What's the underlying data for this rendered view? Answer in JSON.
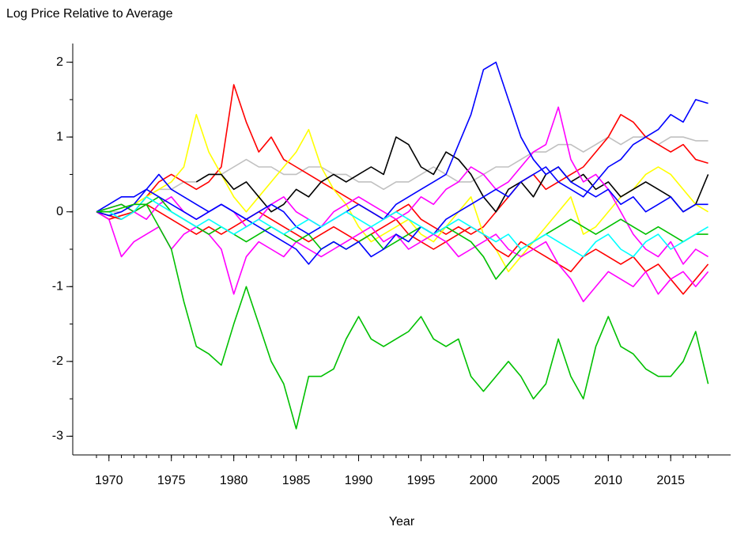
{
  "chart_data": {
    "type": "line",
    "title": "Log Price Relative to Average",
    "xlabel": "Year",
    "xlim": [
      1967.1,
      2019.8
    ],
    "ylim": [
      -3.25,
      2.25
    ],
    "xticks": [
      1970,
      1975,
      1980,
      1985,
      1990,
      1995,
      2000,
      2005,
      2010,
      2015
    ],
    "yticks": [
      -3,
      -2,
      -1,
      0,
      1,
      2
    ],
    "xminorticks": [
      1969,
      1970,
      1971,
      1972,
      1973,
      1974,
      1975,
      1976,
      1977,
      1978,
      1979,
      1980,
      1981,
      1982,
      1983,
      1984,
      1985,
      1986,
      1987,
      1988,
      1989,
      1990,
      1991,
      1992,
      1993,
      1994,
      1995,
      1996,
      1997,
      1998,
      1999,
      2000,
      2001,
      2002,
      2003,
      2004,
      2005,
      2006,
      2007,
      2008,
      2009,
      2010,
      2011,
      2012,
      2013,
      2014,
      2015,
      2016,
      2017,
      2018
    ],
    "yminorticks": [
      -3,
      -2.5,
      -2,
      -1.5,
      -1,
      -0.5,
      0,
      0.5,
      1,
      1.5,
      2
    ],
    "x": [
      1969,
      1970,
      1971,
      1972,
      1973,
      1974,
      1975,
      1976,
      1977,
      1978,
      1979,
      1980,
      1981,
      1982,
      1983,
      1984,
      1985,
      1986,
      1987,
      1988,
      1989,
      1990,
      1991,
      1992,
      1993,
      1994,
      1995,
      1996,
      1997,
      1998,
      1999,
      2000,
      2001,
      2002,
      2003,
      2004,
      2005,
      2006,
      2007,
      2008,
      2009,
      2010,
      2011,
      2012,
      2013,
      2014,
      2015,
      2016,
      2017,
      2018
    ],
    "series": [
      {
        "color": "#c0c0c0",
        "values": [
          0,
          0.0,
          0.0,
          0.1,
          0.2,
          0.3,
          0.3,
          0.4,
          0.4,
          0.5,
          0.5,
          0.6,
          0.7,
          0.6,
          0.6,
          0.5,
          0.5,
          0.6,
          0.6,
          0.5,
          0.5,
          0.4,
          0.4,
          0.3,
          0.4,
          0.4,
          0.5,
          0.6,
          0.5,
          0.4,
          0.4,
          0.5,
          0.6,
          0.6,
          0.7,
          0.8,
          0.8,
          0.9,
          0.9,
          0.8,
          0.9,
          1.0,
          0.9,
          1.0,
          1.0,
          0.9,
          1.0,
          1.0,
          0.95,
          0.95
        ]
      },
      {
        "color": "#ff0000",
        "values": [
          0,
          -0.05,
          -0.1,
          0.0,
          0.2,
          0.4,
          0.5,
          0.4,
          0.3,
          0.4,
          0.6,
          1.7,
          1.2,
          0.8,
          1.0,
          0.7,
          0.6,
          0.5,
          0.4,
          0.3,
          0.2,
          0.1,
          0.0,
          -0.1,
          0.0,
          0.1,
          -0.1,
          -0.2,
          -0.3,
          -0.2,
          -0.3,
          -0.2,
          0.0,
          0.2,
          0.4,
          0.5,
          0.3,
          0.4,
          0.5,
          0.6,
          0.8,
          1.0,
          1.3,
          1.2,
          1.0,
          0.9,
          0.8,
          0.9,
          0.7,
          0.65
        ]
      },
      {
        "color": "#ffff00",
        "values": [
          0,
          0.0,
          0.05,
          0.1,
          0.2,
          0.3,
          0.4,
          0.6,
          1.3,
          0.8,
          0.5,
          0.2,
          0.0,
          0.2,
          0.4,
          0.6,
          0.8,
          1.1,
          0.6,
          0.3,
          0.1,
          -0.2,
          -0.4,
          -0.3,
          -0.2,
          -0.1,
          -0.3,
          -0.4,
          -0.2,
          0.0,
          0.2,
          -0.3,
          -0.5,
          -0.8,
          -0.6,
          -0.4,
          -0.2,
          0.0,
          0.2,
          -0.3,
          -0.2,
          0.0,
          0.2,
          0.3,
          0.5,
          0.6,
          0.5,
          0.3,
          0.1,
          0.0
        ]
      },
      {
        "color": "#ff0000",
        "values": [
          0,
          -0.1,
          -0.05,
          0.0,
          0.1,
          0.0,
          -0.1,
          -0.2,
          -0.3,
          -0.2,
          -0.3,
          -0.2,
          -0.1,
          0.0,
          -0.1,
          -0.2,
          -0.3,
          -0.4,
          -0.3,
          -0.2,
          -0.3,
          -0.4,
          -0.3,
          -0.2,
          -0.1,
          -0.3,
          -0.4,
          -0.5,
          -0.4,
          -0.3,
          -0.2,
          -0.3,
          -0.5,
          -0.6,
          -0.4,
          -0.5,
          -0.6,
          -0.7,
          -0.8,
          -0.6,
          -0.5,
          -0.6,
          -0.7,
          -0.6,
          -0.8,
          -0.7,
          -0.9,
          -1.1,
          -0.9,
          -0.7
        ]
      },
      {
        "color": "#000000",
        "values": [
          null,
          null,
          null,
          null,
          null,
          null,
          null,
          null,
          0.4,
          0.5,
          0.5,
          0.3,
          0.4,
          0.2,
          0.0,
          0.1,
          0.3,
          0.2,
          0.4,
          0.5,
          0.4,
          0.5,
          0.6,
          0.5,
          1.0,
          0.9,
          0.6,
          0.5,
          0.8,
          0.7,
          0.5,
          0.2,
          0.0,
          0.3,
          0.4,
          0.2,
          0.5,
          0.6,
          0.4,
          0.5,
          0.3,
          0.4,
          0.2,
          0.3,
          0.4,
          0.3,
          0.2,
          0.0,
          0.1,
          0.5
        ]
      },
      {
        "color": "#ff00ff",
        "values": [
          0,
          -0.1,
          -0.6,
          -0.4,
          -0.3,
          -0.2,
          -0.5,
          -0.3,
          -0.2,
          -0.3,
          -0.5,
          -1.1,
          -0.6,
          -0.4,
          -0.5,
          -0.6,
          -0.4,
          -0.5,
          -0.6,
          -0.5,
          -0.4,
          -0.3,
          -0.2,
          -0.4,
          -0.3,
          -0.5,
          -0.4,
          -0.3,
          -0.4,
          -0.6,
          -0.5,
          -0.4,
          -0.3,
          -0.5,
          -0.6,
          -0.5,
          -0.4,
          -0.7,
          -0.9,
          -1.2,
          -1.0,
          -0.8,
          -0.9,
          -1.0,
          -0.8,
          -1.1,
          -0.9,
          -0.8,
          -1.0,
          -0.8
        ]
      },
      {
        "color": "#ff00ff",
        "values": [
          0,
          0.05,
          0.1,
          0.0,
          -0.1,
          0.1,
          0.2,
          0.0,
          -0.1,
          0.0,
          0.1,
          0.0,
          -0.2,
          -0.1,
          0.1,
          0.2,
          0.0,
          -0.1,
          -0.2,
          0.0,
          0.1,
          0.2,
          0.1,
          0.0,
          -0.1,
          0.0,
          0.2,
          0.1,
          0.3,
          0.4,
          0.6,
          0.5,
          0.3,
          0.4,
          0.6,
          0.8,
          0.9,
          1.4,
          0.7,
          0.4,
          0.5,
          0.3,
          0.0,
          -0.3,
          -0.5,
          -0.6,
          -0.4,
          -0.7,
          -0.5,
          -0.6
        ]
      },
      {
        "color": "#00c000",
        "values": [
          0,
          0.05,
          0.1,
          0.0,
          0.1,
          0.2,
          0.0,
          -0.1,
          -0.2,
          -0.3,
          -0.2,
          -0.3,
          -0.4,
          -0.3,
          -0.2,
          -0.3,
          -0.4,
          -0.3,
          -0.5,
          -0.4,
          -0.5,
          -0.4,
          -0.3,
          -0.5,
          -0.4,
          -0.3,
          -0.2,
          -0.3,
          -0.2,
          -0.3,
          -0.4,
          -0.6,
          -0.9,
          -0.7,
          -0.5,
          -0.4,
          -0.3,
          -0.2,
          -0.1,
          -0.2,
          -0.3,
          -0.2,
          -0.1,
          -0.2,
          -0.3,
          -0.2,
          -0.3,
          -0.4,
          -0.3,
          -0.3
        ]
      },
      {
        "color": "#0000ff",
        "values": [
          0,
          -0.05,
          0.0,
          0.1,
          0.3,
          0.2,
          0.1,
          0.0,
          -0.1,
          0.0,
          0.1,
          0.0,
          -0.1,
          -0.2,
          -0.3,
          -0.4,
          -0.5,
          -0.7,
          -0.5,
          -0.4,
          -0.5,
          -0.4,
          -0.6,
          -0.5,
          -0.3,
          -0.4,
          -0.2,
          -0.3,
          -0.1,
          0.0,
          0.1,
          0.2,
          0.3,
          0.2,
          0.4,
          0.5,
          0.6,
          0.4,
          0.3,
          0.2,
          0.4,
          0.6,
          0.7,
          0.9,
          1.0,
          1.1,
          1.3,
          1.2,
          1.5,
          1.45
        ]
      },
      {
        "color": "#0000ff",
        "values": [
          0,
          0.1,
          0.2,
          0.2,
          0.3,
          0.5,
          0.3,
          0.2,
          0.1,
          0.0,
          0.1,
          0.0,
          -0.1,
          0.0,
          0.1,
          0.0,
          -0.2,
          -0.3,
          -0.2,
          -0.1,
          0.0,
          0.1,
          0.0,
          -0.1,
          0.1,
          0.2,
          0.3,
          0.4,
          0.5,
          0.9,
          1.3,
          1.9,
          2.0,
          1.5,
          1.0,
          0.7,
          0.5,
          0.6,
          0.4,
          0.3,
          0.2,
          0.3,
          0.1,
          0.2,
          0.0,
          0.1,
          0.2,
          0.0,
          0.1,
          0.1
        ]
      },
      {
        "color": "#00ffff",
        "values": [
          0,
          0.0,
          -0.1,
          0.0,
          0.2,
          0.1,
          0.0,
          -0.1,
          -0.2,
          -0.1,
          -0.2,
          -0.3,
          -0.2,
          -0.1,
          -0.2,
          -0.3,
          -0.2,
          -0.1,
          -0.2,
          -0.1,
          0.0,
          -0.1,
          -0.2,
          -0.1,
          0.0,
          -0.1,
          -0.2,
          -0.3,
          -0.2,
          -0.1,
          -0.2,
          -0.3,
          -0.4,
          -0.3,
          -0.5,
          -0.4,
          -0.3,
          -0.4,
          -0.5,
          -0.6,
          -0.4,
          -0.3,
          -0.5,
          -0.6,
          -0.4,
          -0.3,
          -0.5,
          -0.4,
          -0.3,
          -0.2
        ]
      },
      {
        "color": "#00c000",
        "values": [
          0,
          0.0,
          0.05,
          0.1,
          0.1,
          -0.2,
          -0.5,
          -1.2,
          -1.8,
          -1.9,
          -2.05,
          -1.5,
          -1.0,
          -1.5,
          -2.0,
          -2.3,
          -2.9,
          -2.2,
          -2.2,
          -2.1,
          -1.7,
          -1.4,
          -1.7,
          -1.8,
          -1.7,
          -1.6,
          -1.4,
          -1.7,
          -1.8,
          -1.7,
          -2.2,
          -2.4,
          -2.2,
          -2.0,
          -2.2,
          -2.5,
          -2.3,
          -1.7,
          -2.2,
          -2.5,
          -1.8,
          -1.4,
          -1.8,
          -1.9,
          -2.1,
          -2.2,
          -2.2,
          -2.0,
          -1.6,
          -2.3
        ]
      }
    ]
  }
}
